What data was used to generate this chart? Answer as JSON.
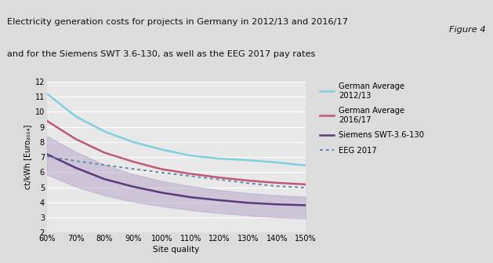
{
  "title_line1": "Electricity generation costs for projects in Germany in 2012/13 and 2016/17",
  "title_line2": "and for the Siemens SWT 3.6-130, as well as the EEG 2017 pay rates",
  "figure_label": "Figure 4",
  "xlabel": "Site quality",
  "ylabel": "ct/kWh [Euro₂₀₁₄]",
  "xlim": [
    60,
    150
  ],
  "ylim": [
    2,
    12
  ],
  "yticks": [
    2,
    3,
    4,
    5,
    6,
    7,
    8,
    9,
    10,
    11,
    12
  ],
  "xtick_labels": [
    "60%",
    "70%",
    "80%",
    "90%",
    "100%",
    "110%",
    "120%",
    "130%",
    "140%",
    "150%"
  ],
  "x": [
    60,
    70,
    80,
    90,
    100,
    110,
    120,
    130,
    140,
    150
  ],
  "german_avg_2012": [
    11.2,
    9.7,
    8.7,
    8.0,
    7.5,
    7.1,
    6.9,
    6.8,
    6.65,
    6.45
  ],
  "german_avg_2016": [
    9.4,
    8.2,
    7.3,
    6.7,
    6.2,
    5.9,
    5.65,
    5.45,
    5.3,
    5.2
  ],
  "siemens_center": [
    7.2,
    6.3,
    5.55,
    5.05,
    4.65,
    4.35,
    4.15,
    3.98,
    3.88,
    3.82
  ],
  "siemens_upper": [
    8.4,
    7.35,
    6.5,
    5.88,
    5.42,
    5.08,
    4.82,
    4.62,
    4.48,
    4.38
  ],
  "siemens_lower": [
    5.85,
    5.05,
    4.48,
    4.05,
    3.75,
    3.5,
    3.3,
    3.15,
    3.02,
    2.95
  ],
  "eeg_2017": [
    7.05,
    6.75,
    6.48,
    6.22,
    5.98,
    5.75,
    5.52,
    5.28,
    5.08,
    4.98
  ],
  "color_german_2012": "#82cfe0",
  "color_german_2016": "#c05878",
  "color_siemens": "#5a3a7a",
  "color_siemens_band": "#b8a8cc",
  "color_eeg": "#6088aa",
  "bg_color": "#dcdcdc",
  "title_bg_color": "#d0d0d0",
  "plot_bg_color": "#e8e8e8",
  "legend_labels": [
    "German Average\n2012/13",
    "German Average\n2016/17",
    "Siemens SWT-3.6-130",
    "EEG 2017"
  ]
}
